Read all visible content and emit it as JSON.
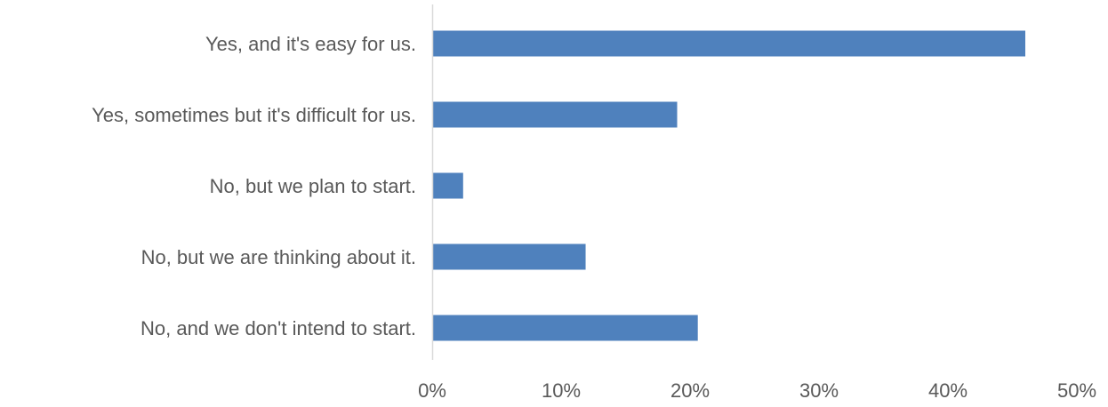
{
  "chart_data": {
    "type": "bar",
    "orientation": "horizontal",
    "categories": [
      "Yes, and it's easy for us.",
      "Yes, sometimes but it's difficult for us.",
      "No, but we plan to start.",
      "No, but we are thinking about it.",
      "No, and we don't intend to start."
    ],
    "values": [
      46,
      19,
      2.4,
      11.9,
      20.6
    ],
    "value_unit": "%",
    "xlim": [
      0,
      50
    ],
    "xticks": [
      "0%",
      "10%",
      "20%",
      "30%",
      "40%",
      "50%"
    ],
    "title": "",
    "xlabel": "",
    "ylabel": "",
    "grid": false,
    "legend": "none",
    "bar_color": "#4F81BD",
    "axis_color": "#D9D9D9",
    "label_color": "#595959"
  }
}
